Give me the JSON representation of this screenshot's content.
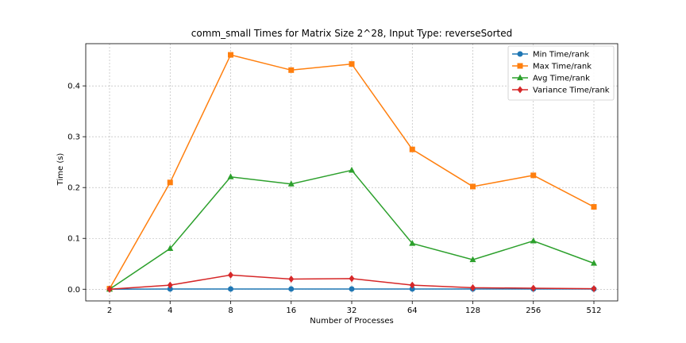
{
  "chart_data": {
    "type": "line",
    "title": "comm_small Times for Matrix Size 2^28, Input Type: reverseSorted",
    "xlabel": "Number of Processes",
    "ylabel": "Time (s)",
    "x": [
      "2",
      "4",
      "8",
      "16",
      "32",
      "64",
      "128",
      "256",
      "512"
    ],
    "ylim": [
      -0.023,
      0.483
    ],
    "yticks": [
      "0.0",
      "0.1",
      "0.2",
      "0.3",
      "0.4"
    ],
    "grid": true,
    "legend_position": "top-right",
    "series": [
      {
        "name": "Min Time/rank",
        "color": "#1f77b4",
        "marker": "circle",
        "values": [
          0.0,
          0.0005,
          0.0005,
          0.0005,
          0.0005,
          0.0005,
          0.0005,
          0.0005,
          0.0005
        ]
      },
      {
        "name": "Max Time/rank",
        "color": "#ff7f0e",
        "marker": "square",
        "values": [
          0.001,
          0.21,
          0.461,
          0.431,
          0.443,
          0.275,
          0.202,
          0.224,
          0.162
        ]
      },
      {
        "name": "Avg Time/rank",
        "color": "#2ca02c",
        "marker": "triangle",
        "values": [
          0.0,
          0.08,
          0.221,
          0.207,
          0.234,
          0.09,
          0.058,
          0.095,
          0.051
        ]
      },
      {
        "name": "Variance Time/rank",
        "color": "#d62728",
        "marker": "diamond",
        "values": [
          0.0,
          0.008,
          0.028,
          0.02,
          0.021,
          0.008,
          0.003,
          0.002,
          0.001
        ]
      }
    ]
  }
}
